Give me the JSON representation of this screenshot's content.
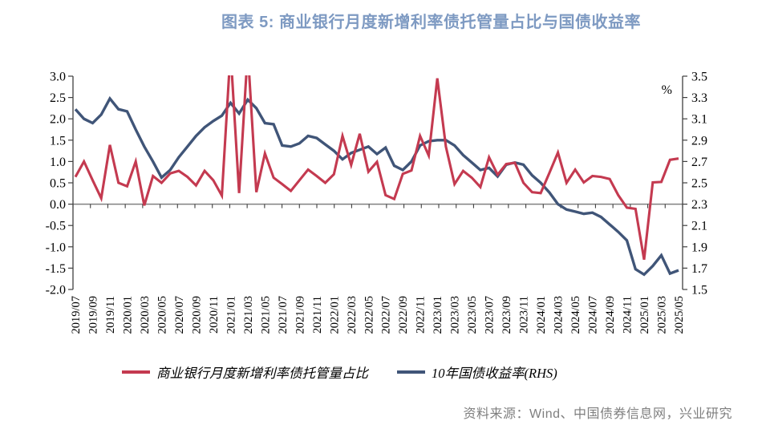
{
  "title": "图表 5: 商业银行月度新增利率债托管量占比与国债收益率",
  "source_note": "资料来源：Wind、中国债券信息网，兴业研究",
  "chart_data": {
    "type": "line",
    "unit_label": "%",
    "x": [
      "2019/07",
      "2019/08",
      "2019/09",
      "2019/10",
      "2019/11",
      "2019/12",
      "2020/01",
      "2020/02",
      "2020/03",
      "2020/04",
      "2020/05",
      "2020/06",
      "2020/07",
      "2020/08",
      "2020/09",
      "2020/10",
      "2020/11",
      "2020/12",
      "2021/01",
      "2021/02",
      "2021/03",
      "2021/04",
      "2021/05",
      "2021/06",
      "2021/07",
      "2021/08",
      "2021/09",
      "2021/10",
      "2021/11",
      "2021/12",
      "2022/01",
      "2022/02",
      "2022/03",
      "2022/04",
      "2022/05",
      "2022/06",
      "2022/07",
      "2022/08",
      "2022/09",
      "2022/10",
      "2022/11",
      "2022/12",
      "2023/01",
      "2023/02",
      "2023/03",
      "2023/04",
      "2023/05",
      "2023/06",
      "2023/07",
      "2023/08",
      "2023/09",
      "2023/10",
      "2023/11",
      "2023/12",
      "2024/01",
      "2024/02",
      "2024/03",
      "2024/04",
      "2024/05",
      "2024/06",
      "2024/07",
      "2024/08",
      "2024/09",
      "2024/10",
      "2024/11",
      "2024/12",
      "2025/01",
      "2025/02",
      "2025/03",
      "2025/04",
      "2025/05"
    ],
    "x_label_step": 2,
    "series": [
      {
        "name": "商业银行月度新增利率债托管量占比",
        "axis": "left",
        "color": "#C43A50",
        "values": [
          0.64,
          1.0,
          0.56,
          0.14,
          1.39,
          0.5,
          0.42,
          1.0,
          -0.03,
          0.66,
          0.5,
          0.72,
          0.78,
          0.64,
          0.44,
          0.78,
          0.56,
          0.2,
          3.6,
          0.26,
          3.6,
          0.28,
          1.19,
          0.62,
          0.47,
          0.31,
          0.56,
          0.81,
          0.66,
          0.5,
          0.7,
          1.6,
          0.92,
          1.65,
          0.76,
          0.99,
          0.21,
          0.12,
          0.71,
          0.79,
          1.6,
          1.14,
          2.95,
          1.35,
          0.47,
          0.78,
          0.62,
          0.4,
          1.1,
          0.69,
          0.94,
          0.97,
          0.5,
          0.28,
          0.26,
          0.73,
          1.21,
          0.5,
          0.81,
          0.51,
          0.66,
          0.64,
          0.59,
          0.21,
          -0.08,
          -0.11,
          -1.3,
          0.51,
          0.52,
          1.04,
          1.07
        ]
      },
      {
        "name": "10年国债收益率(RHS)",
        "axis": "right",
        "color": "#405578",
        "values": [
          3.19,
          3.1,
          3.06,
          3.14,
          3.29,
          3.19,
          3.17,
          3.0,
          2.84,
          2.7,
          2.55,
          2.62,
          2.74,
          2.84,
          2.94,
          3.02,
          3.08,
          3.13,
          3.25,
          3.15,
          3.28,
          3.2,
          3.06,
          3.05,
          2.85,
          2.84,
          2.87,
          2.94,
          2.92,
          2.86,
          2.8,
          2.72,
          2.78,
          2.81,
          2.84,
          2.77,
          2.83,
          2.66,
          2.62,
          2.7,
          2.85,
          2.89,
          2.9,
          2.9,
          2.85,
          2.76,
          2.69,
          2.62,
          2.64,
          2.56,
          2.67,
          2.69,
          2.67,
          2.57,
          2.5,
          2.41,
          2.3,
          2.25,
          2.23,
          2.21,
          2.22,
          2.18,
          2.11,
          2.04,
          1.96,
          1.69,
          1.64,
          1.72,
          1.82,
          1.65,
          1.68
        ]
      }
    ],
    "left_axis": {
      "min": -2.0,
      "max": 3.0,
      "step": 0.5,
      "tick_labels": [
        "3.0",
        "2.5",
        "2.0",
        "1.5",
        "1.0",
        "0.5",
        "0.0",
        "-0.5",
        "-1.0",
        "-1.5",
        "-2.0"
      ]
    },
    "right_axis": {
      "min": 1.5,
      "max": 3.5,
      "step": 0.2,
      "tick_labels": [
        "3.5",
        "3.3",
        "3.1",
        "2.9",
        "2.7",
        "2.5",
        "2.3",
        "2.1",
        "1.9",
        "1.7",
        "1.5"
      ]
    },
    "note": "Red series values for 2021/01 and 2021/03 exceed the left-axis maximum and are clipped at 3.0 in the plot."
  },
  "legend": {
    "item1": "商业银行月度新增利率债托管量占比",
    "item2": "10年国债收益率(RHS)"
  },
  "colors": {
    "title": "#7E9AC2",
    "zero_line": "#808080",
    "axis": "#404040",
    "source_text": "#7F7F7F"
  }
}
